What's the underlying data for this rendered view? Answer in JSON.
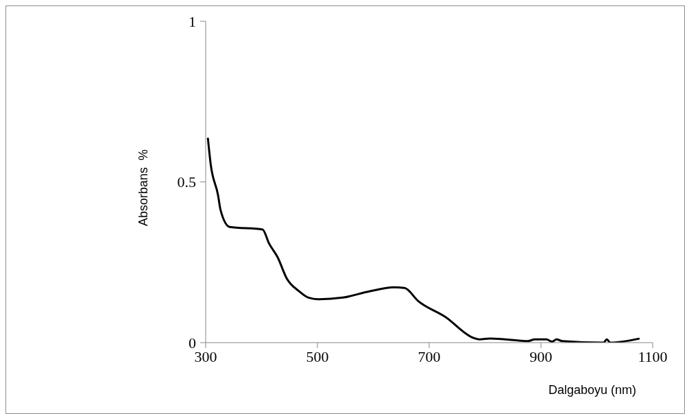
{
  "chart_data": {
    "type": "line",
    "xlabel": "Dalgaboyu (nm)",
    "ylabel": "Absorbans  %",
    "xlim": [
      300,
      1100
    ],
    "xticks": [
      300,
      500,
      700,
      900,
      1100
    ],
    "ylim": [
      0,
      1
    ],
    "yticks": [
      0,
      0.5,
      1
    ],
    "grid": false,
    "legend": false,
    "marker": "none",
    "line_style": "solid",
    "series": [
      {
        "color": "#000000",
        "x": [
          304,
          309,
          322,
          327,
          343,
          402,
          413,
          429,
          445,
          467,
          484,
          502,
          545,
          594,
          637,
          656,
          680,
          729,
          779,
          791,
          809,
          877,
          889,
          910,
          920,
          928,
          938,
          1012,
          1018,
          1024,
          1075
        ],
        "values": [
          0.635,
          0.555,
          0.46,
          0.41,
          0.36,
          0.352,
          0.31,
          0.265,
          0.2,
          0.16,
          0.14,
          0.135,
          0.14,
          0.16,
          0.172,
          0.17,
          0.13,
          0.08,
          0.015,
          0.01,
          0.013,
          0.005,
          0.01,
          0.01,
          0.003,
          0.01,
          0.005,
          0.0,
          0.01,
          0.0,
          0.012
        ]
      }
    ]
  }
}
